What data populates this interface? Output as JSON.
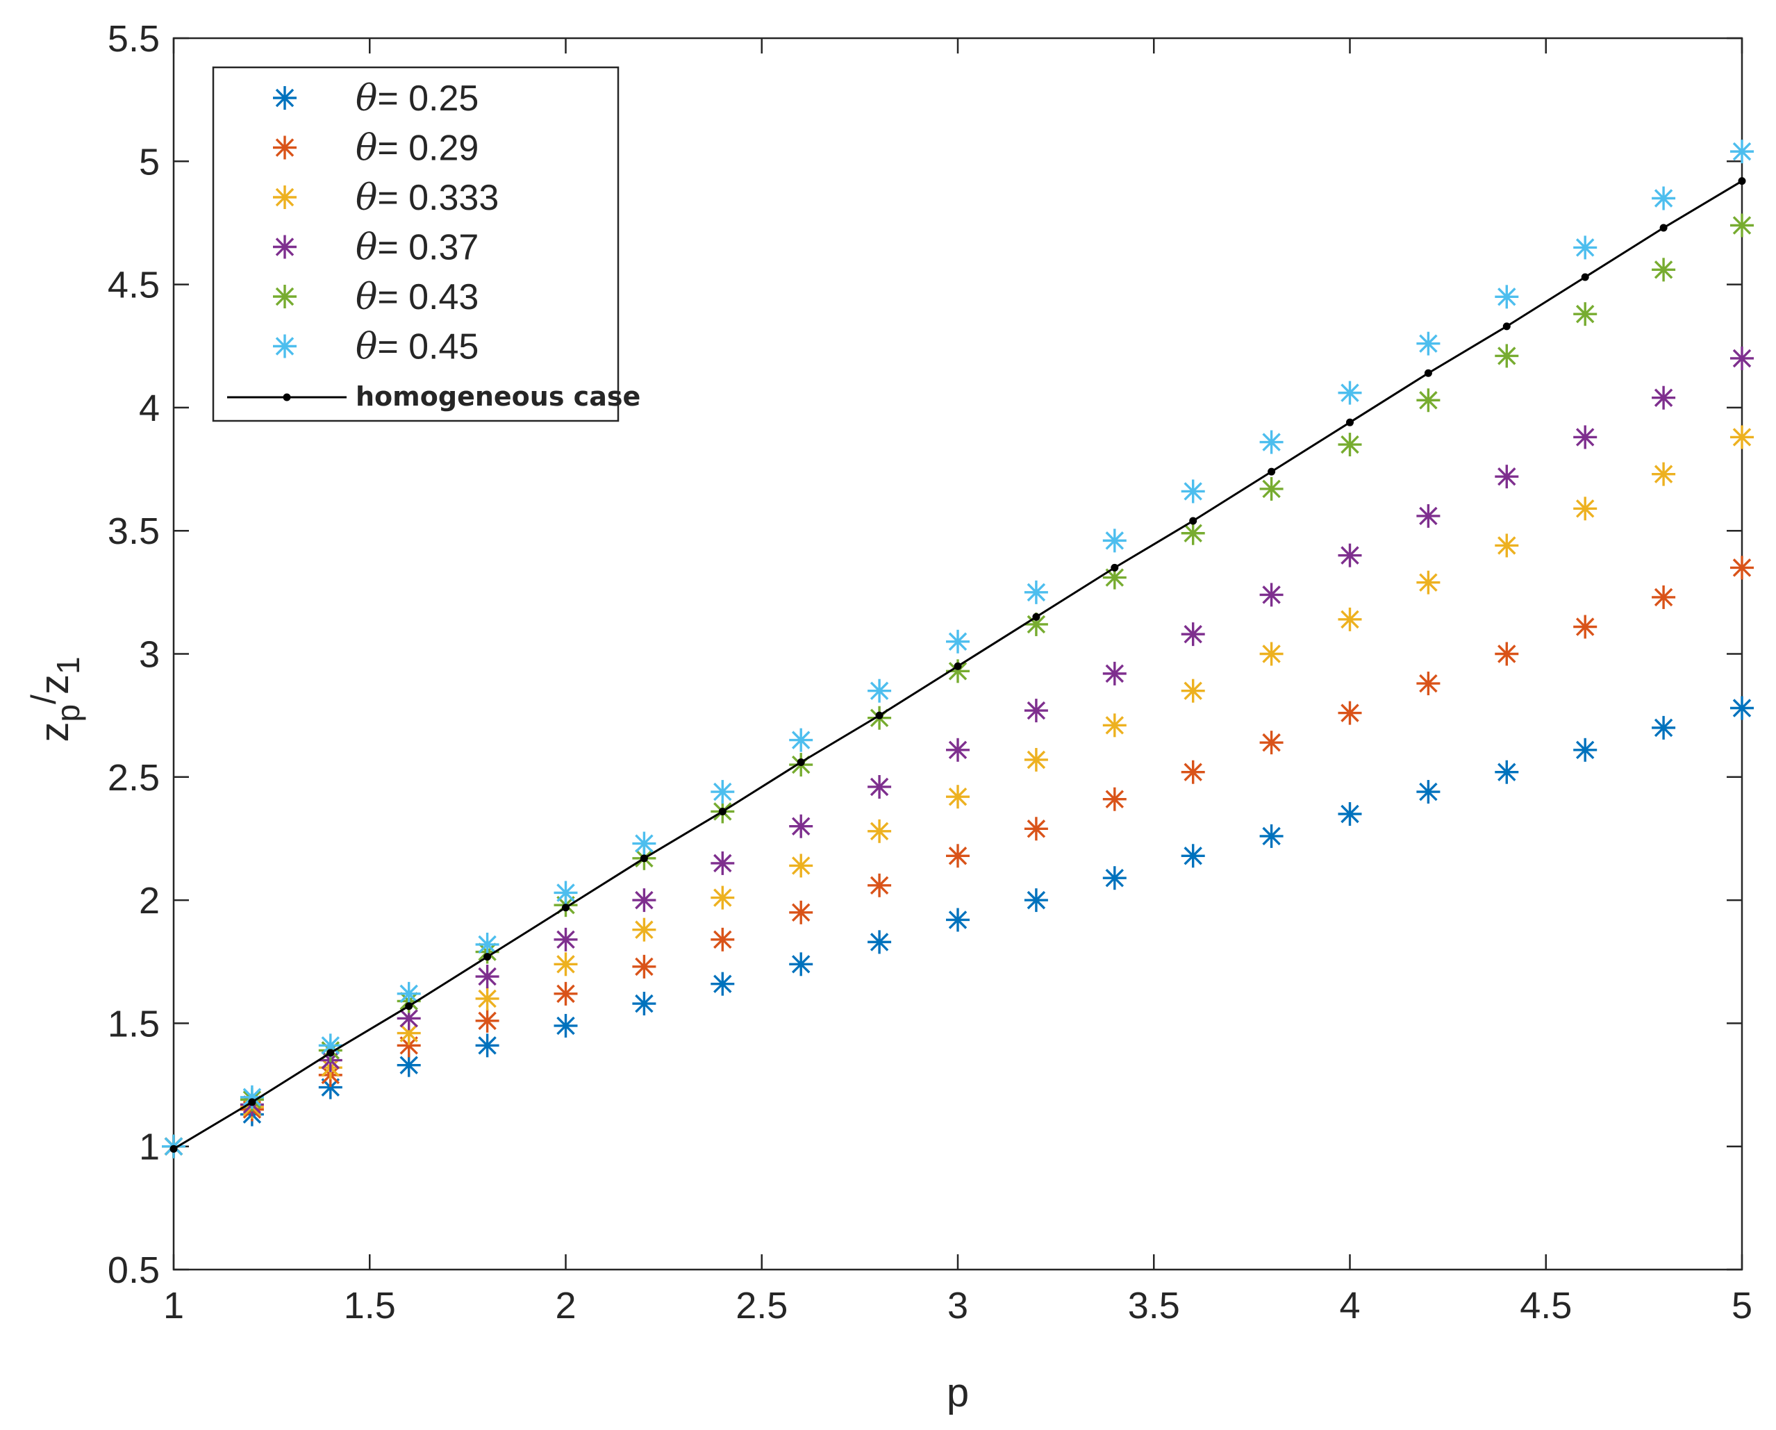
{
  "chart_data": {
    "type": "scatter",
    "title": "",
    "xlabel": "p",
    "ylabel": {
      "main": "z",
      "sub_num": "p",
      "sep": "/",
      "den": "z",
      "sub_den": "1"
    },
    "xlim": [
      1,
      5
    ],
    "ylim": [
      0.5,
      5.5
    ],
    "xticks": [
      "1",
      "1.5",
      "2",
      "2.5",
      "3",
      "3.5",
      "4",
      "4.5",
      "5"
    ],
    "yticks": [
      "0.5",
      "1",
      "1.5",
      "2",
      "2.5",
      "3",
      "3.5",
      "4",
      "4.5",
      "5",
      "5.5"
    ],
    "grid": false,
    "legend": {
      "placement": "top-left"
    },
    "x": [
      1.0,
      1.2,
      1.4,
      1.6,
      1.8,
      2.0,
      2.2,
      2.4,
      2.6,
      2.8,
      3.0,
      3.2,
      3.4,
      3.6,
      3.8,
      4.0,
      4.2,
      4.4,
      4.6,
      4.8,
      5.0
    ],
    "series": [
      {
        "name": "θ= 0.25",
        "label_prefix": "θ",
        "label_value": "= 0.25",
        "color": "#0072BD",
        "marker": "asterisk",
        "values": [
          1.0,
          1.13,
          1.24,
          1.33,
          1.41,
          1.49,
          1.58,
          1.66,
          1.74,
          1.83,
          1.92,
          2.0,
          2.09,
          2.18,
          2.26,
          2.35,
          2.44,
          2.52,
          2.61,
          2.7,
          2.78
        ]
      },
      {
        "name": "θ= 0.29",
        "label_prefix": "θ",
        "label_value": "= 0.29",
        "color": "#D95319",
        "marker": "asterisk",
        "values": [
          1.0,
          1.15,
          1.29,
          1.41,
          1.51,
          1.62,
          1.73,
          1.84,
          1.95,
          2.06,
          2.18,
          2.29,
          2.41,
          2.52,
          2.64,
          2.76,
          2.88,
          3.0,
          3.11,
          3.23,
          3.35
        ]
      },
      {
        "name": "θ= 0.333",
        "label_prefix": "θ",
        "label_value": "= 0.333",
        "color": "#EDB120",
        "marker": "asterisk",
        "values": [
          1.0,
          1.16,
          1.32,
          1.46,
          1.6,
          1.74,
          1.88,
          2.01,
          2.14,
          2.28,
          2.42,
          2.57,
          2.71,
          2.85,
          3.0,
          3.14,
          3.29,
          3.44,
          3.59,
          3.73,
          3.88
        ]
      },
      {
        "name": "θ= 0.37",
        "label_prefix": "θ",
        "label_value": "= 0.37",
        "color": "#7E2F8E",
        "marker": "asterisk",
        "values": [
          1.0,
          1.17,
          1.35,
          1.52,
          1.69,
          1.84,
          2.0,
          2.15,
          2.3,
          2.46,
          2.61,
          2.77,
          2.92,
          3.08,
          3.24,
          3.4,
          3.56,
          3.72,
          3.88,
          4.04,
          4.2
        ]
      },
      {
        "name": "θ= 0.43",
        "label_prefix": "θ",
        "label_value": "= 0.43",
        "color": "#77AC30",
        "marker": "asterisk",
        "values": [
          1.0,
          1.19,
          1.39,
          1.59,
          1.79,
          1.98,
          2.17,
          2.36,
          2.55,
          2.74,
          2.93,
          3.12,
          3.31,
          3.49,
          3.67,
          3.85,
          4.03,
          4.21,
          4.38,
          4.56,
          4.74
        ]
      },
      {
        "name": "θ= 0.45",
        "label_prefix": "θ",
        "label_value": "= 0.45",
        "color": "#4DBEEE",
        "marker": "asterisk",
        "values": [
          1.0,
          1.2,
          1.41,
          1.62,
          1.82,
          2.03,
          2.23,
          2.44,
          2.65,
          2.85,
          3.05,
          3.25,
          3.46,
          3.66,
          3.86,
          4.06,
          4.26,
          4.45,
          4.65,
          4.85,
          5.04
        ]
      },
      {
        "name": "homogeneous case",
        "label_prefix": "",
        "label_value": "homogeneous case",
        "color": "#000000",
        "marker": "dot-line",
        "values": [
          0.99,
          1.18,
          1.38,
          1.57,
          1.77,
          1.97,
          2.17,
          2.36,
          2.56,
          2.75,
          2.95,
          3.15,
          3.35,
          3.54,
          3.74,
          3.94,
          4.14,
          4.33,
          4.53,
          4.73,
          4.92
        ]
      }
    ]
  }
}
